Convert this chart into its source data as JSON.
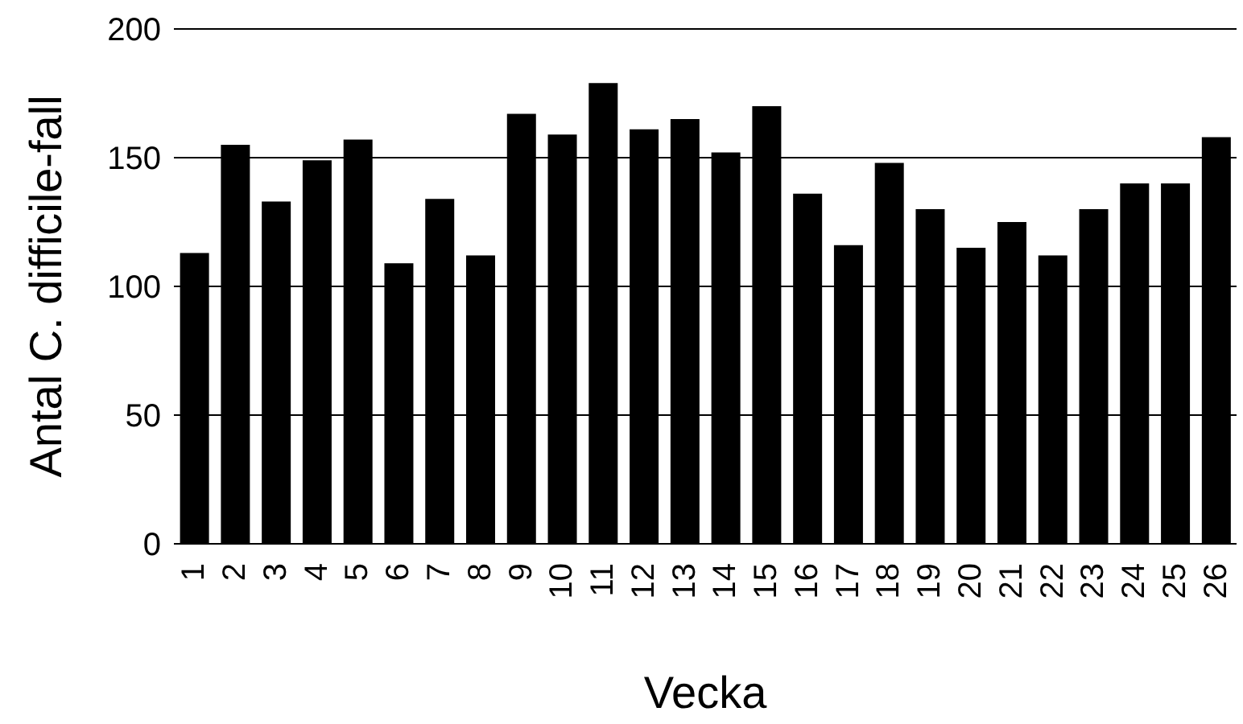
{
  "chart_data": {
    "type": "bar",
    "xlabel": "Vecka",
    "ylabel": "Antal C. difficile-fall",
    "categories": [
      "1",
      "2",
      "3",
      "4",
      "5",
      "6",
      "7",
      "8",
      "9",
      "10",
      "11",
      "12",
      "13",
      "14",
      "15",
      "16",
      "17",
      "18",
      "19",
      "20",
      "21",
      "22",
      "23",
      "24",
      "25",
      "26"
    ],
    "values": [
      113,
      155,
      133,
      149,
      157,
      109,
      134,
      112,
      167,
      159,
      179,
      161,
      165,
      152,
      170,
      136,
      116,
      148,
      130,
      115,
      125,
      112,
      130,
      140,
      140,
      158
    ],
    "color": "#000000",
    "ylim": [
      0,
      200
    ],
    "yticks": [
      0,
      50,
      100,
      150,
      200
    ],
    "grid": "y"
  }
}
